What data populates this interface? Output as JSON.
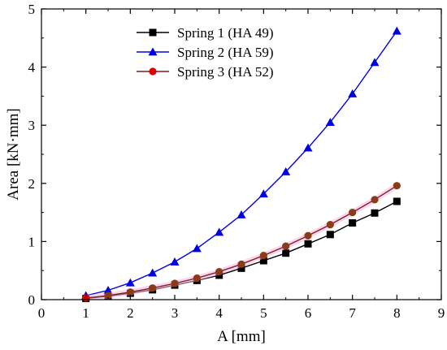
{
  "chart_data": {
    "type": "line",
    "title": "",
    "xlabel": "A [mm]",
    "ylabel": "Area [kN·mm]",
    "xlim": [
      0,
      9
    ],
    "ylim": [
      0,
      5
    ],
    "xticks": [
      0,
      1,
      2,
      3,
      4,
      5,
      6,
      7,
      8,
      9
    ],
    "yticks": [
      0,
      1,
      2,
      3,
      4,
      5
    ],
    "x_tick_labels": [
      "0",
      "1",
      "2",
      "3",
      "4",
      "5",
      "6",
      "7",
      "8",
      "9"
    ],
    "y_tick_labels": [
      "0",
      "1",
      "2",
      "3",
      "4",
      "5"
    ],
    "grid": false,
    "legend_position": "top-center",
    "x": [
      1,
      1.5,
      2,
      2.5,
      3,
      3.5,
      4,
      4.5,
      5,
      5.5,
      6,
      6.5,
      7,
      7.5,
      8
    ],
    "series": [
      {
        "name": "Spring 1 (HA 49)",
        "marker": "square",
        "color": "#000000",
        "values": [
          0.02,
          0.06,
          0.11,
          0.17,
          0.25,
          0.33,
          0.42,
          0.54,
          0.67,
          0.8,
          0.96,
          1.12,
          1.32,
          1.49,
          1.69
        ]
      },
      {
        "name": "Spring 2 (HA 59)",
        "marker": "triangle",
        "color": "#0000e6",
        "values": [
          0.07,
          0.16,
          0.29,
          0.46,
          0.65,
          0.88,
          1.16,
          1.46,
          1.82,
          2.2,
          2.61,
          3.05,
          3.54,
          4.08,
          4.62
        ]
      },
      {
        "name": "Spring 3 (HA 52)",
        "marker": "circle",
        "color": "#dd0000",
        "line_color": "#8b1a1a",
        "values": [
          0.03,
          0.07,
          0.13,
          0.2,
          0.28,
          0.37,
          0.48,
          0.61,
          0.76,
          0.92,
          1.1,
          1.29,
          1.5,
          1.72,
          1.96
        ]
      }
    ]
  }
}
